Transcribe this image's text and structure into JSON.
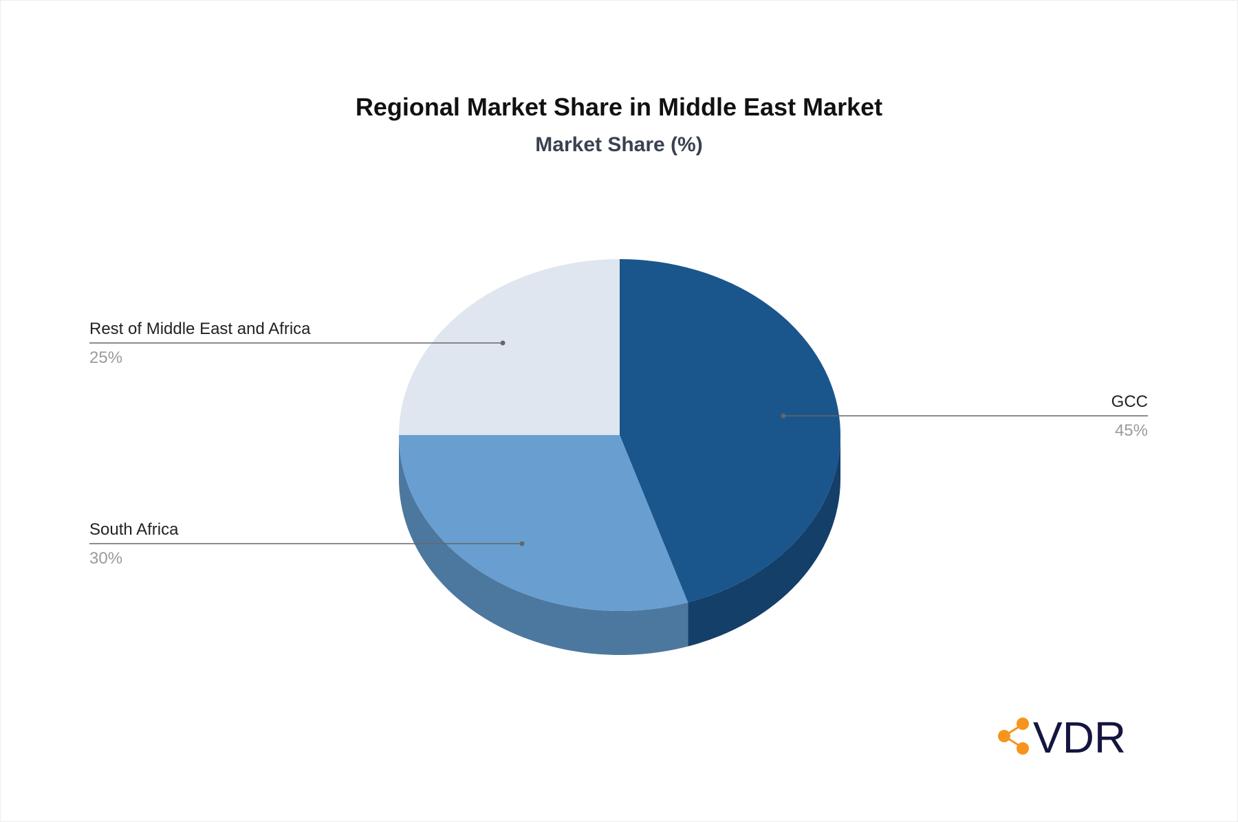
{
  "chart_data": {
    "type": "pie",
    "title": "Regional Market Share in Middle East Market",
    "subtitle": "Market Share (%)",
    "slices": [
      {
        "label": "GCC",
        "value": 45,
        "value_label": "45%",
        "color": "#1a568b",
        "side_color": "#143f69"
      },
      {
        "label": "South Africa",
        "value": 30,
        "value_label": "30%",
        "color": "#689fd0",
        "side_color": "#4c789f"
      },
      {
        "label": "Rest of Middle East and Africa",
        "value": 25,
        "value_label": "25%",
        "color": "#dfe6ef",
        "side_color": "#b9c2cc"
      }
    ],
    "style": "3d",
    "legend": "none (leader-line labels)"
  },
  "logo": {
    "text": "VDR",
    "icon": "share-nodes-icon",
    "icon_color": "#f7941d",
    "text_color": "#14163f"
  }
}
